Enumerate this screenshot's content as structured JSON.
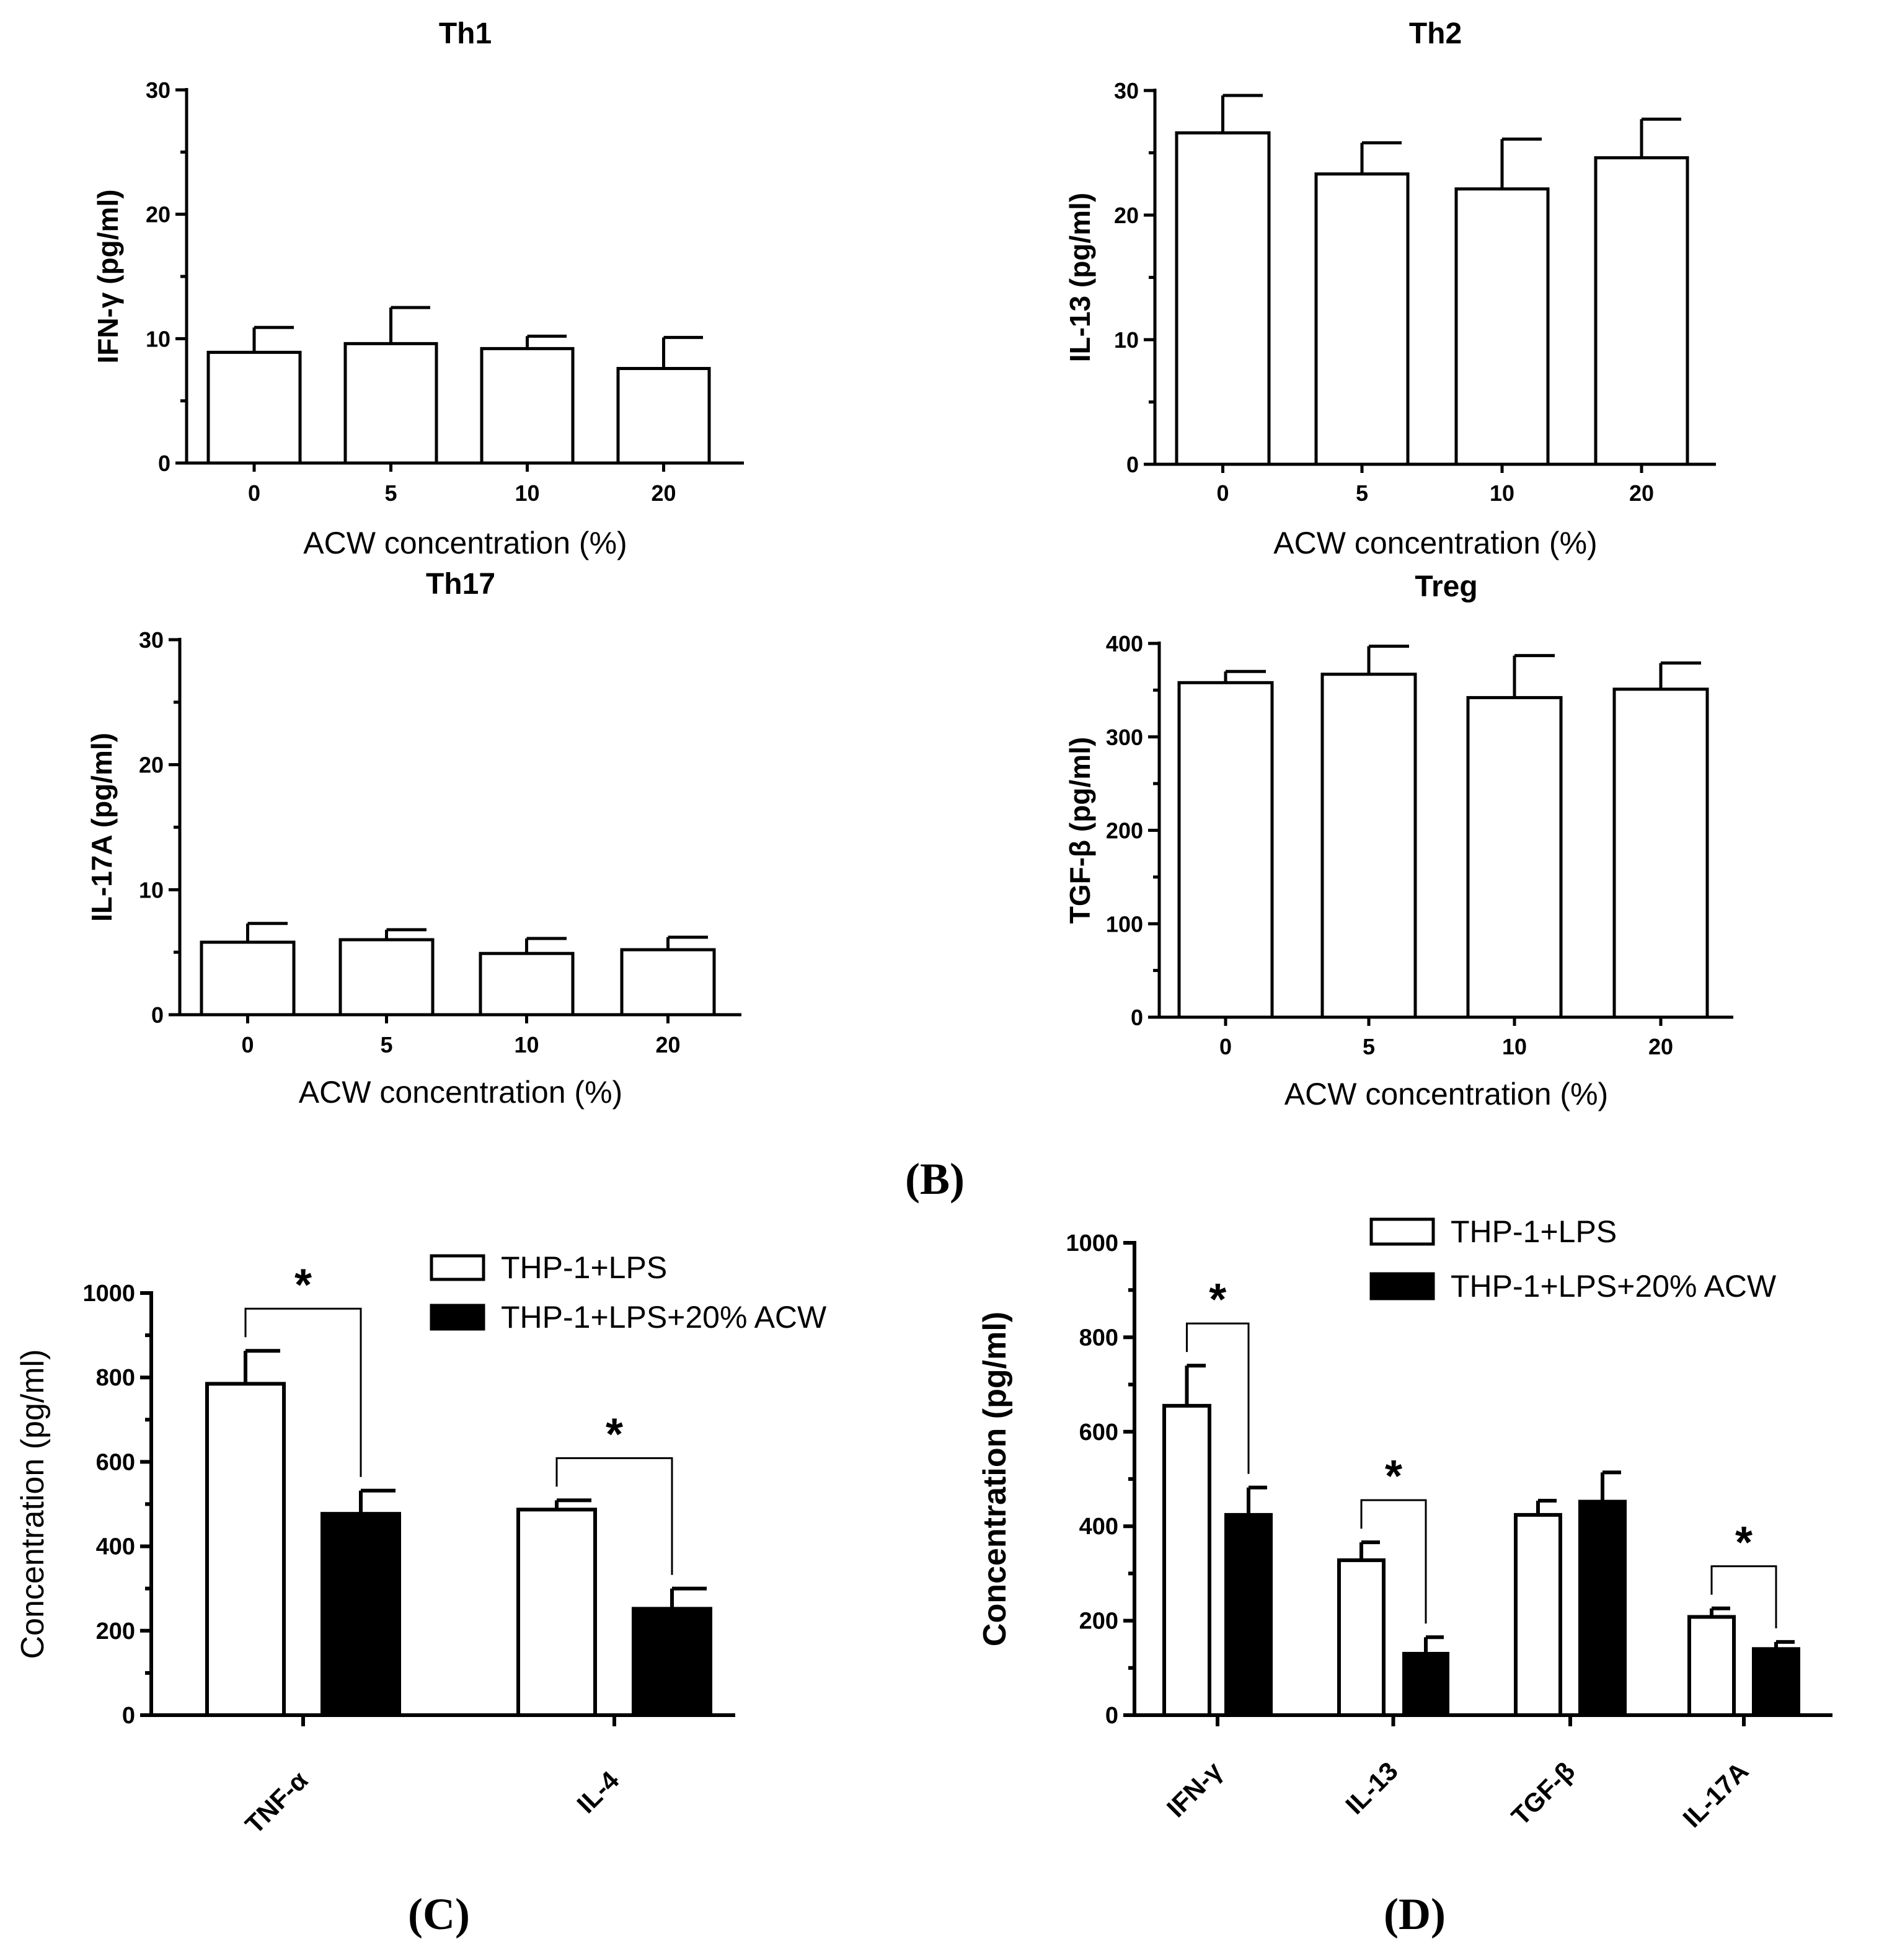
{
  "figure": {
    "panel_labels": [
      "(B)",
      "(C)",
      "(D)"
    ]
  },
  "chart_data": [
    {
      "id": "th1",
      "type": "bar",
      "title": "Th1",
      "xlabel": "ACW concentration (%)",
      "ylabel": "IFN-γ (pg/ml)",
      "categories": [
        "0",
        "5",
        "10",
        "20"
      ],
      "ylim": [
        0,
        30
      ],
      "yticks": [
        0,
        10,
        20,
        30
      ],
      "series": [
        {
          "name": "ACW",
          "fill": "#ffffff",
          "values": [
            8.9,
            9.6,
            9.2,
            7.6
          ],
          "errors": [
            2.0,
            2.9,
            1.0,
            2.5
          ]
        }
      ]
    },
    {
      "id": "th2",
      "type": "bar",
      "title": "Th2",
      "xlabel": "ACW concentration (%)",
      "ylabel": "IL-13 (pg/ml)",
      "categories": [
        "0",
        "5",
        "10",
        "20"
      ],
      "ylim": [
        0,
        30
      ],
      "yticks": [
        0,
        10,
        20,
        30
      ],
      "series": [
        {
          "name": "ACW",
          "fill": "#ffffff",
          "values": [
            26.6,
            23.3,
            22.1,
            24.6
          ],
          "errors": [
            3.0,
            2.5,
            4.0,
            3.1
          ]
        }
      ]
    },
    {
      "id": "th17",
      "type": "bar",
      "title": "Th17",
      "xlabel": "ACW concentration (%)",
      "ylabel": "IL-17A (pg/ml)",
      "categories": [
        "0",
        "5",
        "10",
        "20"
      ],
      "ylim": [
        0,
        30
      ],
      "yticks": [
        0,
        10,
        20,
        30
      ],
      "series": [
        {
          "name": "ACW",
          "fill": "#ffffff",
          "values": [
            5.8,
            6.0,
            4.9,
            5.2
          ],
          "errors": [
            1.5,
            0.8,
            1.2,
            1.0
          ]
        }
      ]
    },
    {
      "id": "treg",
      "type": "bar",
      "title": "Treg",
      "xlabel": "ACW concentration (%)",
      "ylabel": "TGF-β (pg/ml)",
      "categories": [
        "0",
        "5",
        "10",
        "20"
      ],
      "ylim": [
        0,
        400
      ],
      "yticks": [
        0,
        100,
        200,
        300,
        400
      ],
      "series": [
        {
          "name": "ACW",
          "fill": "#ffffff",
          "values": [
            358,
            367,
            342,
            351
          ],
          "errors": [
            12,
            30,
            45,
            28
          ]
        }
      ]
    },
    {
      "id": "panelC",
      "type": "bar",
      "title": "",
      "xlabel": "",
      "ylabel": "Concentration (pg/ml)",
      "categories": [
        "TNF-α",
        "IL-4"
      ],
      "ylim": [
        0,
        1000
      ],
      "yticks": [
        0,
        200,
        400,
        600,
        800,
        1000
      ],
      "legend": "top-right",
      "series": [
        {
          "name": "THP-1+LPS",
          "fill": "#ffffff",
          "values": [
            785,
            487
          ],
          "errors": [
            78,
            22
          ]
        },
        {
          "name": "THP-1+LPS+20% ACW",
          "fill": "#000000",
          "values": [
            477,
            252
          ],
          "errors": [
            55,
            48
          ]
        }
      ],
      "significance": [
        {
          "category": "TNF-α",
          "label": "*"
        },
        {
          "category": "IL-4",
          "label": "*"
        }
      ]
    },
    {
      "id": "panelD",
      "type": "bar",
      "title": "",
      "xlabel": "",
      "ylabel": "Concentration (pg/ml)",
      "categories": [
        "IFN-γ",
        "IL-13",
        "TGF-β",
        "IL-17A"
      ],
      "ylim": [
        0,
        1000
      ],
      "yticks": [
        0,
        200,
        400,
        600,
        800,
        1000
      ],
      "legend": "top-right",
      "series": [
        {
          "name": "THP-1+LPS",
          "fill": "#ffffff",
          "values": [
            655,
            328,
            424,
            208
          ],
          "errors": [
            85,
            38,
            30,
            18
          ]
        },
        {
          "name": "THP-1+LPS+20% ACW",
          "fill": "#000000",
          "values": [
            424,
            130,
            452,
            140
          ],
          "errors": [
            58,
            35,
            62,
            15
          ]
        }
      ],
      "significance": [
        {
          "category": "IFN-γ",
          "label": "*"
        },
        {
          "category": "IL-13",
          "label": "*"
        },
        {
          "category": "IL-17A",
          "label": "*"
        }
      ]
    }
  ]
}
